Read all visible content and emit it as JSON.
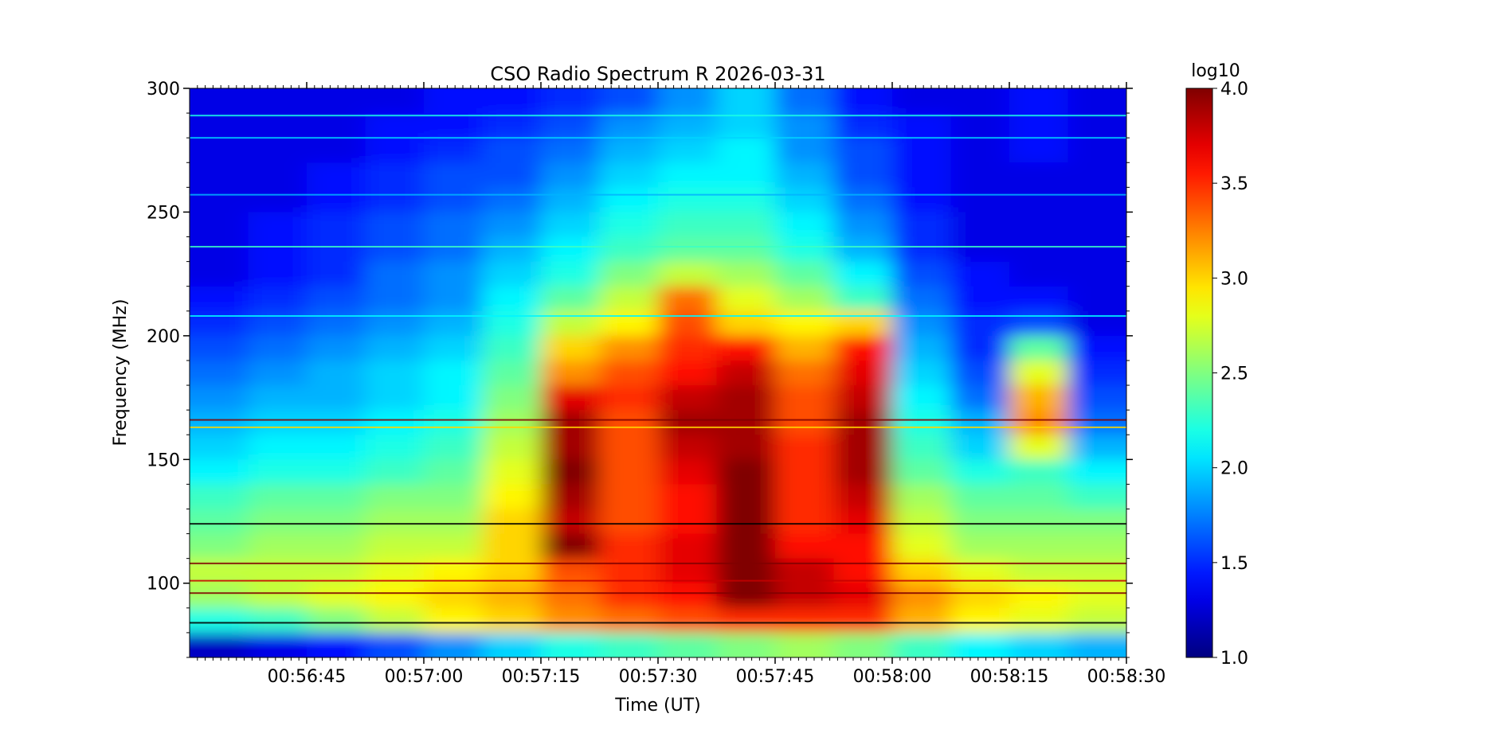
{
  "chart_data": {
    "type": "heatmap",
    "title": "CSO Radio Spectrum R 2026-03-31",
    "xlabel": "Time (UT)",
    "ylabel": "Frequency (MHz)",
    "colorbar_label": "log10",
    "colormap": "jet",
    "clim": [
      1.0,
      4.0
    ],
    "colorbar_ticks": [
      "1.0",
      "1.5",
      "2.0",
      "2.5",
      "3.0",
      "3.5",
      "4.0"
    ],
    "xlim": [
      "00:56:30",
      "00:58:30"
    ],
    "ylim": [
      70,
      300
    ],
    "x_tick_labels": [
      "00:56:45",
      "00:57:00",
      "00:57:15",
      "00:57:30",
      "00:57:45",
      "00:58:00",
      "00:58:15",
      "00:58:30"
    ],
    "y_tick_labels": [
      "100",
      "150",
      "200",
      "250",
      "300"
    ],
    "time_bins": [
      "00:56:33.75",
      "00:56:41.25",
      "00:56:48.75",
      "00:56:56.25",
      "00:57:03.75",
      "00:57:11.25",
      "00:57:18.75",
      "00:57:26.25",
      "00:57:33.75",
      "00:57:41.25",
      "00:57:48.75",
      "00:57:56.25",
      "00:58:03.75",
      "00:58:11.25",
      "00:58:18.75",
      "00:58:26.25"
    ],
    "freq_bins_mhz": [
      295,
      285,
      275,
      265,
      255,
      245,
      235,
      225,
      215,
      205,
      195,
      185,
      175,
      165,
      155,
      145,
      135,
      125,
      115,
      105,
      95,
      85,
      75
    ],
    "values_log10": [
      [
        1.3,
        1.3,
        1.3,
        1.3,
        1.4,
        1.4,
        1.5,
        1.6,
        1.8,
        2.0,
        1.7,
        1.4,
        1.3,
        1.3,
        1.4,
        1.3
      ],
      [
        1.3,
        1.3,
        1.3,
        1.4,
        1.4,
        1.5,
        1.6,
        1.8,
        1.9,
        2.0,
        1.8,
        1.5,
        1.4,
        1.3,
        1.4,
        1.3
      ],
      [
        1.3,
        1.3,
        1.3,
        1.4,
        1.5,
        1.6,
        1.7,
        1.9,
        2.0,
        2.1,
        1.8,
        1.6,
        1.4,
        1.3,
        1.4,
        1.3
      ],
      [
        1.3,
        1.3,
        1.4,
        1.5,
        1.6,
        1.6,
        1.8,
        2.0,
        2.1,
        2.1,
        1.9,
        1.6,
        1.4,
        1.3,
        1.3,
        1.3
      ],
      [
        1.3,
        1.3,
        1.4,
        1.5,
        1.6,
        1.7,
        1.9,
        2.1,
        2.2,
        2.2,
        2.0,
        1.7,
        1.4,
        1.3,
        1.3,
        1.3
      ],
      [
        1.3,
        1.4,
        1.5,
        1.6,
        1.7,
        1.8,
        2.0,
        2.2,
        2.3,
        2.3,
        2.1,
        1.8,
        1.5,
        1.3,
        1.3,
        1.3
      ],
      [
        1.3,
        1.4,
        1.5,
        1.6,
        1.7,
        1.9,
        2.1,
        2.3,
        2.4,
        2.4,
        2.2,
        1.9,
        1.5,
        1.3,
        1.3,
        1.3
      ],
      [
        1.3,
        1.4,
        1.5,
        1.7,
        1.8,
        2.0,
        2.2,
        2.5,
        2.7,
        2.6,
        2.4,
        2.1,
        1.6,
        1.4,
        1.3,
        1.3
      ],
      [
        1.4,
        1.5,
        1.6,
        1.7,
        1.8,
        2.1,
        2.4,
        2.7,
        3.3,
        2.8,
        2.6,
        2.3,
        1.7,
        1.4,
        1.4,
        1.3
      ],
      [
        1.5,
        1.6,
        1.7,
        1.8,
        1.9,
        2.2,
        2.7,
        2.9,
        3.4,
        3.0,
        2.9,
        3.0,
        1.8,
        1.5,
        1.6,
        1.3
      ],
      [
        1.6,
        1.7,
        1.8,
        1.9,
        2.0,
        2.3,
        3.0,
        3.2,
        3.5,
        3.6,
        3.1,
        3.6,
        1.9,
        1.5,
        2.4,
        1.4
      ],
      [
        1.7,
        1.8,
        1.9,
        2.0,
        2.1,
        2.4,
        3.2,
        3.4,
        3.6,
        3.8,
        3.3,
        3.7,
        2.0,
        1.6,
        2.8,
        1.5
      ],
      [
        1.8,
        1.9,
        1.9,
        2.0,
        2.1,
        2.5,
        3.7,
        3.5,
        3.8,
        3.9,
        3.4,
        3.8,
        2.1,
        1.7,
        3.1,
        1.6
      ],
      [
        1.9,
        2.0,
        2.0,
        2.1,
        2.2,
        2.6,
        3.9,
        3.4,
        3.9,
        3.9,
        3.4,
        3.9,
        2.2,
        1.9,
        3.2,
        1.7
      ],
      [
        2.0,
        2.1,
        2.1,
        2.2,
        2.3,
        2.7,
        3.9,
        3.4,
        3.8,
        3.9,
        3.5,
        3.9,
        2.3,
        2.0,
        2.8,
        1.9
      ],
      [
        2.1,
        2.2,
        2.2,
        2.3,
        2.4,
        2.8,
        4.0,
        3.4,
        3.7,
        4.0,
        3.5,
        3.9,
        2.4,
        2.2,
        2.3,
        2.1
      ],
      [
        2.3,
        2.4,
        2.4,
        2.5,
        2.5,
        2.9,
        3.9,
        3.4,
        3.6,
        4.0,
        3.5,
        3.8,
        2.6,
        2.4,
        2.4,
        2.3
      ],
      [
        2.4,
        2.5,
        2.5,
        2.6,
        2.6,
        3.0,
        3.8,
        3.4,
        3.6,
        4.0,
        3.5,
        3.7,
        2.7,
        2.5,
        2.5,
        2.5
      ],
      [
        2.5,
        2.6,
        2.6,
        2.7,
        2.7,
        3.0,
        4.0,
        3.5,
        3.7,
        4.0,
        3.6,
        3.6,
        2.8,
        2.6,
        2.6,
        2.6
      ],
      [
        2.7,
        2.7,
        2.7,
        2.8,
        2.9,
        3.0,
        3.4,
        3.5,
        3.7,
        4.0,
        3.8,
        3.6,
        3.0,
        2.8,
        2.7,
        2.7
      ],
      [
        2.6,
        2.7,
        2.8,
        2.9,
        3.0,
        3.1,
        3.3,
        3.5,
        3.6,
        4.0,
        3.8,
        3.7,
        3.2,
        3.0,
        2.9,
        2.8
      ],
      [
        2.2,
        2.3,
        2.5,
        2.7,
        2.9,
        3.0,
        3.2,
        3.3,
        3.4,
        3.5,
        3.5,
        3.5,
        3.1,
        2.9,
        2.8,
        2.7
      ],
      [
        1.2,
        1.3,
        1.4,
        1.6,
        1.8,
        2.0,
        2.2,
        2.3,
        2.4,
        2.5,
        2.6,
        2.5,
        2.3,
        2.1,
        2.0,
        1.9
      ]
    ],
    "rfi_lines_mhz": [
      {
        "freq": 289,
        "level": 2.2
      },
      {
        "freq": 280,
        "level": 2.0
      },
      {
        "freq": 257,
        "level": 1.9
      },
      {
        "freq": 236,
        "level": 2.3
      },
      {
        "freq": 208,
        "level": 2.1
      },
      {
        "freq": 166,
        "level": 4.0
      },
      {
        "freq": 163,
        "level": 3.0
      },
      {
        "freq": 124,
        "level": 1.0
      },
      {
        "freq": 108,
        "level": 4.0
      },
      {
        "freq": 101,
        "level": 3.8
      },
      {
        "freq": 96,
        "level": 4.0
      },
      {
        "freq": 84,
        "level": 1.0
      }
    ],
    "grid": false
  }
}
